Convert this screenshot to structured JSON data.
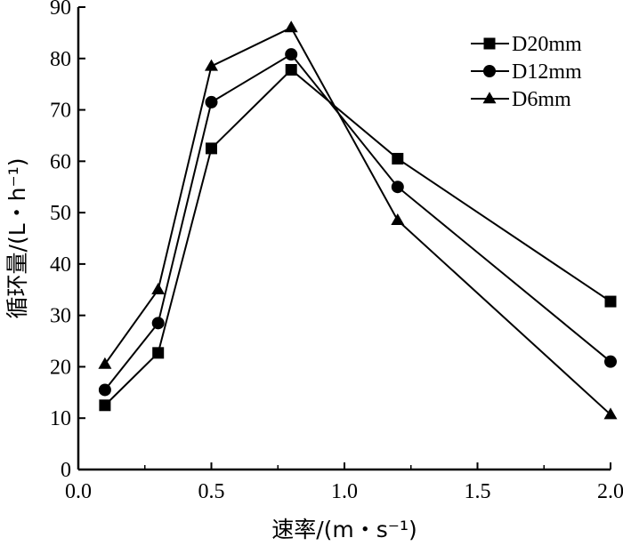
{
  "chart_data": {
    "type": "line",
    "title": "",
    "xlabel": "速率/(m・s⁻¹)",
    "ylabel": "循环量/(L・h⁻¹)",
    "xlim": [
      0.0,
      2.0
    ],
    "ylim": [
      0,
      90
    ],
    "xticks": [
      "0.0",
      "0.5",
      "1.0",
      "1.5",
      "2.0"
    ],
    "yticks": [
      "0",
      "10",
      "20",
      "30",
      "40",
      "50",
      "60",
      "70",
      "80",
      "90"
    ],
    "x": [
      0.1,
      0.3,
      0.5,
      0.8,
      1.2,
      2.0
    ],
    "legend_position": "top-right",
    "grid": false,
    "series": [
      {
        "name": "D20mm",
        "marker": "square",
        "values": [
          12.5,
          22.7,
          62.5,
          77.8,
          60.5,
          32.7
        ]
      },
      {
        "name": "D12mm",
        "marker": "circle",
        "values": [
          15.5,
          28.5,
          71.5,
          80.8,
          55.0,
          21.0
        ]
      },
      {
        "name": "D6mm",
        "marker": "triangle",
        "values": [
          20.5,
          35.0,
          78.5,
          86.0,
          48.5,
          10.7
        ]
      }
    ]
  }
}
